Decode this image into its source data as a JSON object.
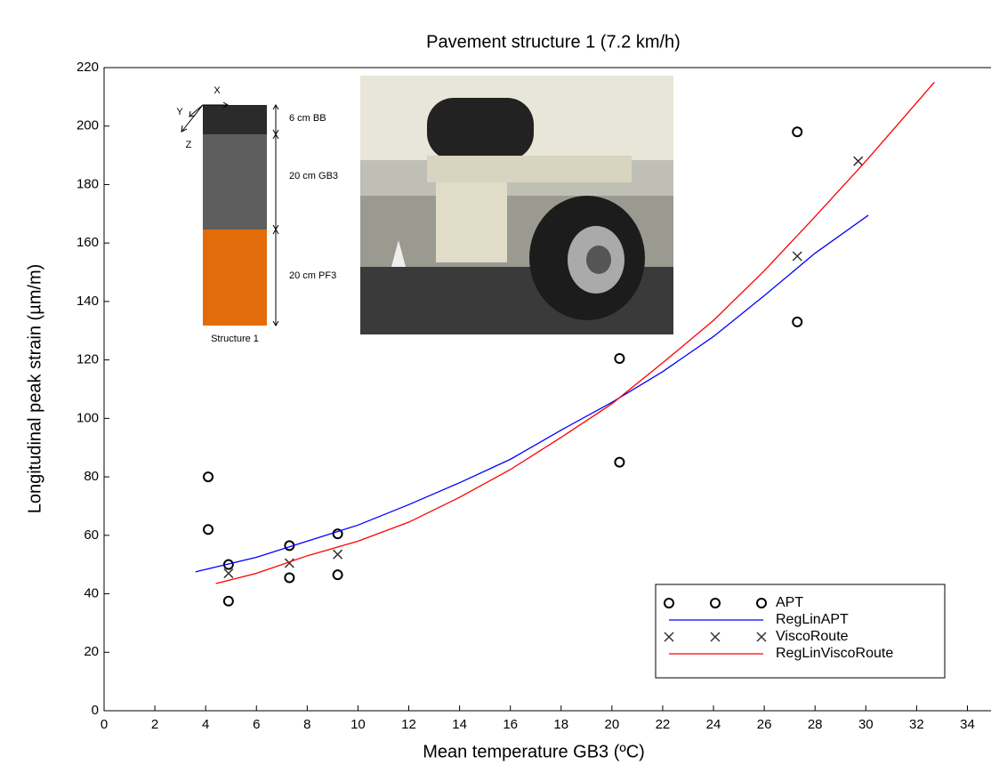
{
  "chart_data": {
    "type": "scatter",
    "title": "Pavement structure 1 (7.2 km/h)",
    "x_label": "Mean temperature GB3 (ºC)",
    "y_label": "Longitudinal peak strain (µm/m)",
    "xlim": [
      0,
      35
    ],
    "xticks": [
      0,
      2,
      4,
      6,
      8,
      10,
      12,
      14,
      16,
      18,
      20,
      22,
      24,
      26,
      28,
      30,
      32,
      34
    ],
    "ylim": [
      0,
      220
    ],
    "yticks": [
      0,
      20,
      40,
      60,
      80,
      100,
      120,
      140,
      160,
      180,
      200,
      220
    ],
    "legend": "lower right",
    "series": [
      {
        "name": "APT",
        "color": "#000000",
        "marker": "circle",
        "x": [
          4.1,
          4.1,
          4.9,
          4.9,
          7.3,
          7.3,
          9.2,
          9.2,
          20.3,
          20.3,
          27.3,
          27.3
        ],
        "values": [
          80,
          62,
          50,
          37.5,
          56.5,
          45.5,
          60.5,
          46.5,
          120.5,
          85,
          198,
          133
        ]
      },
      {
        "name": "RegLinAPT",
        "color": "#0000ff",
        "marker": "line",
        "x": [
          3.6,
          6,
          8,
          10,
          12,
          14,
          16,
          18,
          20,
          22,
          24,
          26,
          28,
          30.1
        ],
        "values": [
          47.5,
          52.5,
          58,
          63.5,
          70.5,
          78,
          86,
          96,
          105.5,
          116,
          128,
          142,
          156.5,
          169.5
        ]
      },
      {
        "name": "ViscoRoute",
        "color": "#333333",
        "marker": "cross",
        "x": [
          4.9,
          7.3,
          9.2,
          27.3,
          29.7
        ],
        "values": [
          47,
          50.5,
          53.5,
          155.5,
          188
        ]
      },
      {
        "name": "RegLinViscoRoute",
        "color": "#ff0000",
        "marker": "line",
        "x": [
          4.4,
          6,
          8,
          10,
          12,
          14,
          16,
          18,
          20,
          22,
          24,
          26,
          28,
          30,
          32.7
        ],
        "values": [
          43.5,
          47,
          53,
          58,
          64.5,
          73,
          82.5,
          93.5,
          105,
          119,
          133.5,
          150.5,
          169,
          188,
          215
        ]
      }
    ],
    "annotations": [
      "X",
      "Y",
      "Z",
      "6 cm BB",
      "20 cm GB3",
      "20 cm PF3",
      "Structure 1"
    ]
  }
}
